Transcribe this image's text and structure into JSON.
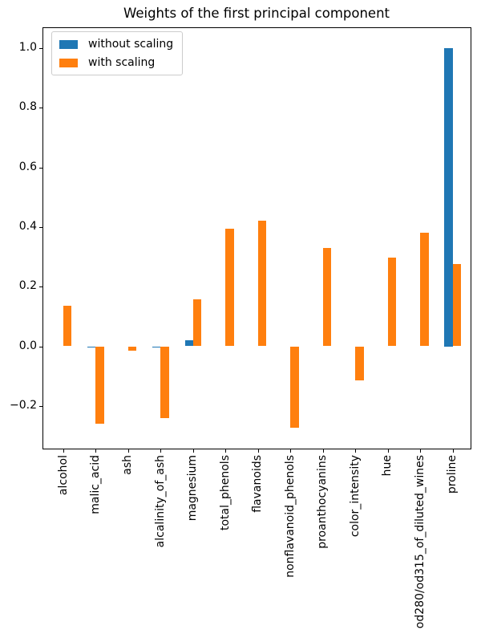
{
  "chart_data": {
    "type": "bar",
    "title": "Weights of the first principal component",
    "xlabel": "",
    "ylabel": "",
    "categories": [
      "alcohol",
      "malic_acid",
      "ash",
      "alcalinity_of_ash",
      "magnesium",
      "total_phenols",
      "flavanoids",
      "nonflavanoid_phenols",
      "proanthocyanins",
      "color_intensity",
      "hue",
      "od280/od315_of_diluted_wines",
      "proline"
    ],
    "series": [
      {
        "name": "without scaling",
        "color": "#1f77b4",
        "values": [
          0.001,
          -0.002,
          0.0,
          -0.005,
          0.019,
          0.001,
          0.001,
          0.0,
          0.001,
          0.001,
          0.0,
          0.001,
          1.0
        ]
      },
      {
        "name": "with scaling",
        "color": "#ff7f0e",
        "values": [
          0.135,
          -0.26,
          -0.015,
          -0.24,
          0.158,
          0.394,
          0.42,
          -0.272,
          0.331,
          -0.114,
          0.298,
          0.381,
          0.276
        ]
      }
    ],
    "ylim": [
      -0.34,
      1.07
    ],
    "yticks": [
      {
        "label": "1.0",
        "value": 1.0
      },
      {
        "label": "0.8",
        "value": 0.8
      },
      {
        "label": "0.6",
        "value": 0.6
      },
      {
        "label": "0.4",
        "value": 0.4
      },
      {
        "label": "0.2",
        "value": 0.2
      },
      {
        "label": "0.0",
        "value": 0.0
      },
      {
        "label": "−0.2",
        "value": -0.2
      }
    ],
    "grid": false,
    "legend_position": "upper left"
  },
  "legend": {
    "items": [
      {
        "label": "without scaling",
        "color": "#1f77b4"
      },
      {
        "label": "with scaling",
        "color": "#ff7f0e"
      }
    ]
  }
}
